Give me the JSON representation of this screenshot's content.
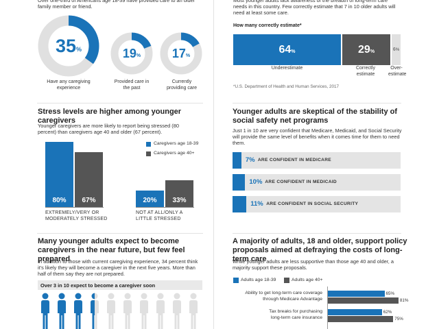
{
  "colors": {
    "blue": "#1a73b8",
    "dark": "#555555",
    "light": "#e0e0e0"
  },
  "left": {
    "intro": "Over one-third of Americans age 18-39 have provided care to an older family member or friend.",
    "donuts": [
      {
        "value": 35,
        "pct": "%",
        "caption": "Have any caregiving experience"
      },
      {
        "value": 19,
        "pct": "%",
        "caption": "Provided care in the past"
      },
      {
        "value": 17,
        "pct": "%",
        "caption": "Currently providing care"
      }
    ],
    "stress": {
      "title": "Stress levels are higher among younger caregivers",
      "desc": "Younger caregivers are more likely to report being stressed (80 percent) than caregivers age 40 and older (67 percent).",
      "legend": [
        "Caregivers age 18-39",
        "Caregivers age 40+"
      ],
      "groups": [
        {
          "label1": "EXTREMELY/VERY OR",
          "label2": "MODERATELY STRESSED",
          "v1": 80,
          "v2": 67,
          "t1": "80%",
          "t2": "67%"
        },
        {
          "label1": "NOT AT ALL/ONLY A",
          "label2": "LITTLE STRESSED",
          "v1": 20,
          "v2": 33,
          "t1": "20%",
          "t2": "33%"
        }
      ]
    },
    "expect": {
      "title": "Many younger adults expect to become caregivers in the near future, but few feel prepared",
      "desc": "In addition to those with current caregiving experience, 34 percent think it's likely they will become a caregiver in the next five years. More than half of them say they are not prepared.",
      "subhead": "Over 3 in 10 expect to become a caregiver soon"
    }
  },
  "right": {
    "intro": "Most younger adults lack awareness of the breadth of long-term care needs in this country. Few correctly estimate that 7 in 10 older adults will need at least some care.",
    "estimate": {
      "subhead": "How many correctly estimate*",
      "segments": [
        {
          "value": 64,
          "pct": "%",
          "label": "Underestimate"
        },
        {
          "value": 29,
          "pct": "%",
          "label1": "Correctly",
          "label2": "estimate"
        },
        {
          "value": 6,
          "pct": "%",
          "label1": "Over-",
          "label2": "estimate"
        }
      ],
      "source": "*U.S. Department of Health and Human Services, 2017"
    },
    "skeptical": {
      "title": "Younger adults are skeptical of the stability of social safety net programs",
      "desc": "Just 1 in 10 are very confident that Medicare, Medicaid, and Social Security will provide the same level of benefits when it comes time for them to need them.",
      "items": [
        {
          "value": 7,
          "pct": "7%",
          "label": "ARE CONFIDENT IN MEDICARE"
        },
        {
          "value": 10,
          "pct": "10%",
          "label": "ARE CONFIDENT IN MEDICAID"
        },
        {
          "value": 11,
          "pct": "11%",
          "label": "ARE CONFIDENT IN SOCIAL SECURITY"
        }
      ]
    },
    "policy": {
      "title": "A majority of adults, 18 and older, support policy proposals aimed at defraying the costs of long-term care",
      "desc": "While younger adults are less supportive than those age 40 and older, a majority support these proposals.",
      "legend": [
        "Adults age 18-39",
        "Adults age 40+"
      ],
      "rows": [
        {
          "label1": "Ability to get long-term care coverage",
          "label2": "through Medicare Advantage",
          "v1": 65,
          "v2": 81,
          "t1": "65%",
          "t2": "81%"
        },
        {
          "label1": "Tax breaks for purchasing",
          "label2": "long-term care insurance",
          "v1": 62,
          "v2": 75,
          "t1": "62%",
          "t2": "75%"
        }
      ]
    }
  },
  "chart_data": [
    {
      "type": "pie",
      "title": "",
      "categories": [
        "Have any caregiving experience",
        "Provided care in the past",
        "Currently providing care"
      ],
      "values": [
        35,
        19,
        17
      ]
    },
    {
      "type": "bar",
      "title": "Stress levels are higher among younger caregivers",
      "categories": [
        "EXTREMELY/VERY OR MODERATELY STRESSED",
        "NOT AT ALL/ONLY A LITTLE STRESSED"
      ],
      "series": [
        {
          "name": "Caregivers age 18-39",
          "values": [
            80,
            20
          ]
        },
        {
          "name": "Caregivers age 40+",
          "values": [
            67,
            33
          ]
        }
      ],
      "legend": "top-right"
    },
    {
      "type": "bar",
      "title": "How many correctly estimate*",
      "categories": [
        "Underestimate",
        "Correctly estimate",
        "Over-estimate"
      ],
      "values": [
        64,
        29,
        6
      ]
    },
    {
      "type": "bar",
      "title": "Younger adults are skeptical of the stability of social safety net programs",
      "categories": [
        "ARE CONFIDENT IN MEDICARE",
        "ARE CONFIDENT IN MEDICAID",
        "ARE CONFIDENT IN SOCIAL SECURITY"
      ],
      "values": [
        7,
        10,
        11
      ]
    },
    {
      "type": "bar",
      "title": "A majority of adults, 18 and older, support policy proposals aimed at defraying the costs of long-term care",
      "categories": [
        "Ability to get long-term care coverage through Medicare Advantage",
        "Tax breaks for purchasing long-term care insurance"
      ],
      "series": [
        {
          "name": "Adults age 18-39",
          "values": [
            65,
            62
          ]
        },
        {
          "name": "Adults age 40+",
          "values": [
            81,
            75
          ]
        }
      ],
      "legend": "top-left"
    }
  ]
}
